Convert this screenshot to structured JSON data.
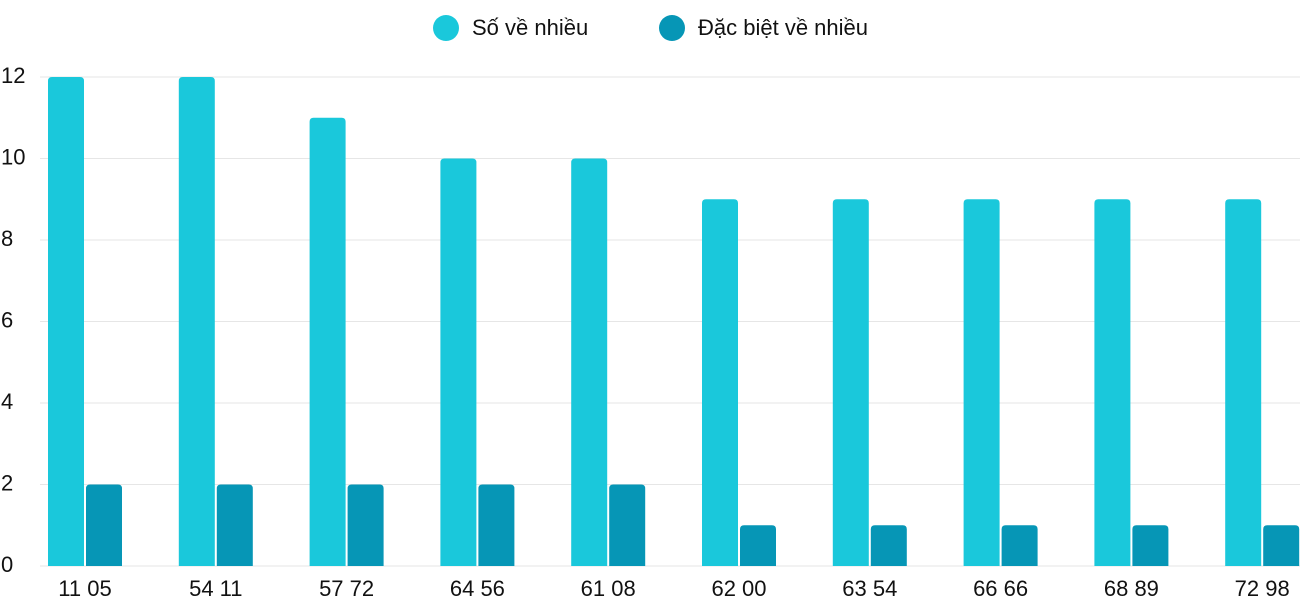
{
  "chart_data": {
    "type": "bar",
    "categories": [
      "11 05",
      "54 11",
      "57 72",
      "64 56",
      "61 08",
      "62 00",
      "63 54",
      "66 66",
      "68 89",
      "72 98"
    ],
    "series": [
      {
        "name": "Số về nhiều",
        "color": "#1ac8db",
        "values": [
          12,
          12,
          11,
          10,
          10,
          9,
          9,
          9,
          9,
          9
        ]
      },
      {
        "name": "Đặc biệt về nhiều",
        "color": "#0696b6",
        "values": [
          2,
          2,
          2,
          2,
          2,
          1,
          1,
          1,
          1,
          1
        ]
      }
    ],
    "ylim": [
      0,
      12
    ],
    "yticks": [
      0,
      2,
      4,
      6,
      8,
      10,
      12
    ],
    "grid": true,
    "legend": "top"
  }
}
